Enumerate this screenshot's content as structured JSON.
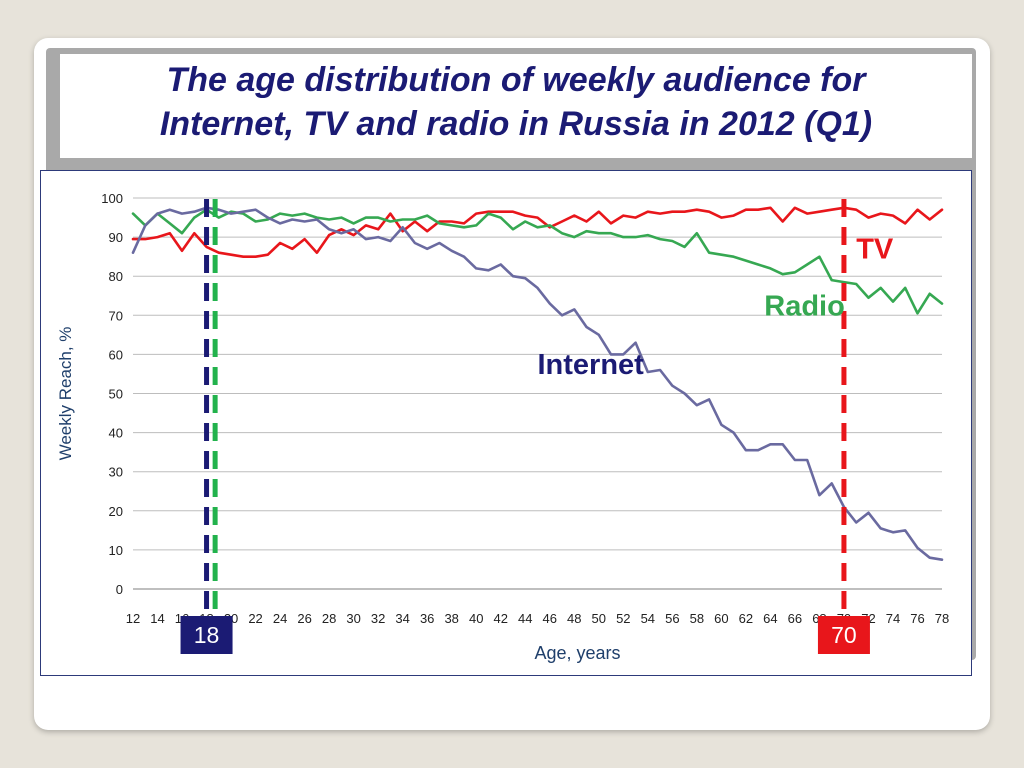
{
  "title_line1": "The age distribution of weekly audience for",
  "title_line2": "Internet, TV and radio in Russia in 2012 (Q1)",
  "chart_data": {
    "type": "line",
    "xlabel": "Age, years",
    "ylabel": "Weekly Reach, %",
    "xlim": [
      12,
      78
    ],
    "ylim": [
      0,
      100
    ],
    "yticks": [
      0,
      10,
      20,
      30,
      40,
      50,
      60,
      70,
      80,
      90,
      100
    ],
    "xticks": [
      12,
      14,
      16,
      18,
      20,
      22,
      24,
      26,
      28,
      30,
      32,
      34,
      36,
      38,
      40,
      42,
      44,
      46,
      48,
      50,
      52,
      54,
      56,
      58,
      60,
      62,
      64,
      66,
      68,
      70,
      72,
      74,
      76,
      78
    ],
    "grid": true,
    "series": [
      {
        "name": "TV",
        "color": "#e8161b",
        "x": [
          12,
          13,
          14,
          15,
          16,
          17,
          18,
          19,
          20,
          21,
          22,
          23,
          24,
          25,
          26,
          27,
          28,
          29,
          30,
          31,
          32,
          33,
          34,
          35,
          36,
          37,
          38,
          39,
          40,
          41,
          42,
          43,
          44,
          45,
          46,
          47,
          48,
          49,
          50,
          51,
          52,
          53,
          54,
          55,
          56,
          57,
          58,
          59,
          60,
          61,
          62,
          63,
          64,
          65,
          66,
          67,
          68,
          69,
          70,
          71,
          72,
          73,
          74,
          75,
          76,
          77,
          78
        ],
        "y": [
          89.5,
          89.5,
          90,
          91,
          86.5,
          91,
          87.5,
          86,
          85.5,
          85,
          85,
          85.5,
          88.5,
          87,
          89.5,
          86,
          90.5,
          92,
          90.5,
          93,
          92,
          96,
          91.5,
          94,
          91.5,
          94,
          94,
          93.5,
          96,
          96.5,
          96.5,
          96.5,
          95.5,
          95,
          92.5,
          94,
          95.5,
          94,
          96.5,
          93.5,
          95.5,
          95,
          96.5,
          96,
          96.5,
          96.5,
          97,
          96.5,
          95,
          95.5,
          97,
          97,
          97.5,
          94,
          97.5,
          96,
          96.5,
          97,
          97.5,
          97,
          95,
          96,
          95.5,
          93.5,
          97,
          94.5,
          97
        ]
      },
      {
        "name": "Radio",
        "color": "#36a852",
        "x": [
          12,
          13,
          14,
          15,
          16,
          17,
          18,
          19,
          20,
          21,
          22,
          23,
          24,
          25,
          26,
          27,
          28,
          29,
          30,
          31,
          32,
          33,
          34,
          35,
          36,
          37,
          38,
          39,
          40,
          41,
          42,
          43,
          44,
          45,
          46,
          47,
          48,
          49,
          50,
          51,
          52,
          53,
          54,
          55,
          56,
          57,
          58,
          59,
          60,
          61,
          62,
          63,
          64,
          65,
          66,
          67,
          68,
          69,
          70,
          71,
          72,
          73,
          74,
          75,
          76,
          77,
          78
        ],
        "y": [
          96,
          93,
          96,
          93.5,
          91,
          95,
          97,
          95,
          96.5,
          96,
          94,
          94.5,
          96,
          95.5,
          96,
          95,
          94.5,
          95,
          93.5,
          95,
          95,
          94,
          94.5,
          94.5,
          95.5,
          93.5,
          93,
          92.5,
          93,
          96,
          95,
          92,
          94,
          92.5,
          93,
          91,
          90,
          91.5,
          91,
          91,
          90,
          90,
          90.5,
          89.5,
          89,
          87.5,
          91,
          86,
          85.5,
          85,
          84,
          83,
          82,
          80.5,
          81,
          83,
          85,
          79,
          78.5,
          78,
          74.5,
          77,
          73.5,
          77,
          70.5,
          75.5,
          73
        ]
      },
      {
        "name": "Internet",
        "color": "#6a6aa0",
        "x": [
          12,
          13,
          14,
          15,
          16,
          17,
          18,
          19,
          20,
          21,
          22,
          23,
          24,
          25,
          26,
          27,
          28,
          29,
          30,
          31,
          32,
          33,
          34,
          35,
          36,
          37,
          38,
          39,
          40,
          41,
          42,
          43,
          44,
          45,
          46,
          47,
          48,
          49,
          50,
          51,
          52,
          53,
          54,
          55,
          56,
          57,
          58,
          59,
          60,
          61,
          62,
          63,
          64,
          65,
          66,
          67,
          68,
          69,
          70,
          71,
          72,
          73,
          74,
          75,
          76,
          77,
          78
        ],
        "y": [
          86,
          93,
          96,
          97,
          96,
          96.5,
          97.5,
          97,
          96,
          96.5,
          97,
          95,
          93.5,
          94.5,
          94,
          94.5,
          92,
          91,
          92,
          89.5,
          90,
          89,
          92.5,
          88.5,
          87,
          88.5,
          86.5,
          85,
          82,
          81.5,
          83,
          80,
          79.5,
          77,
          73,
          70,
          71.5,
          67,
          65,
          60,
          60,
          63,
          55.5,
          56,
          52,
          50,
          47,
          48.5,
          42,
          40,
          35.5,
          35.5,
          37,
          37,
          33,
          33,
          24,
          27,
          21,
          17,
          19.5,
          15.5,
          14.5,
          15,
          10.5,
          8,
          7.5
        ]
      }
    ],
    "annotations": [
      {
        "text": "TV",
        "x": 71,
        "y": 84.5,
        "color": "#e8161b"
      },
      {
        "text": "Radio",
        "x": 63.5,
        "y": 70,
        "color": "#36a852"
      },
      {
        "text": "Internet",
        "x": 45,
        "y": 55,
        "color": "#1b1b74"
      },
      {
        "text": "18",
        "x": 18,
        "box_color": "#1b1b74"
      },
      {
        "text": "70",
        "x": 70,
        "box_color": "#e8161b"
      }
    ],
    "vlines": [
      {
        "x": 18,
        "color": "#1b1b74"
      },
      {
        "x": 18.7,
        "color": "#22b24c"
      },
      {
        "x": 70,
        "color": "#e8161b"
      }
    ]
  }
}
